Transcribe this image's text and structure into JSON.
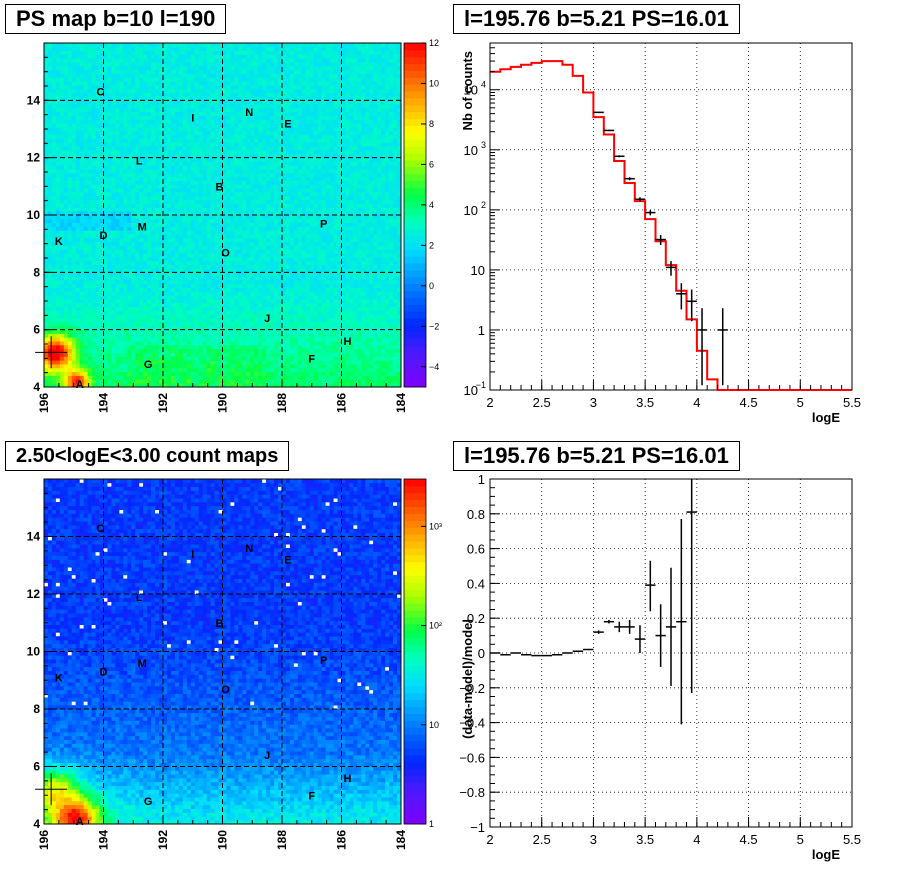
{
  "panels": {
    "top_left_title": "PS map b=10 l=190",
    "top_right_title": "l=195.76 b=5.21 PS=16.01",
    "bottom_left_title": "2.50<logE<3.00 count maps",
    "bottom_right_title": "l=195.76 b=5.21 PS=16.01"
  },
  "chart_data": [
    {
      "type": "heatmap",
      "title": "PS map b=10 l=190",
      "xlim": [
        196,
        184
      ],
      "ylim": [
        4,
        16
      ],
      "xticks": [
        "196",
        "194",
        "192",
        "190",
        "188",
        "186",
        "184"
      ],
      "yticks": [
        "4",
        "6",
        "8",
        "10",
        "12",
        "14"
      ],
      "colorbar": {
        "min": -5,
        "max": 12,
        "ticks": [
          "−4",
          "−2",
          "0",
          "2",
          "4",
          "6",
          "8",
          "10",
          "12"
        ]
      },
      "grid": true,
      "source_labels": [
        {
          "label": "A",
          "l": 194.8,
          "b": 4.1
        },
        {
          "label": "C",
          "l": 194.1,
          "b": 14.3
        },
        {
          "label": "I",
          "l": 191.0,
          "b": 13.4
        },
        {
          "label": "N",
          "l": 189.1,
          "b": 13.6
        },
        {
          "label": "E",
          "l": 187.8,
          "b": 13.2
        },
        {
          "label": "L",
          "l": 192.8,
          "b": 11.9
        },
        {
          "label": "B",
          "l": 190.1,
          "b": 11.0
        },
        {
          "label": "P",
          "l": 186.6,
          "b": 9.7
        },
        {
          "label": "M",
          "l": 192.7,
          "b": 9.6
        },
        {
          "label": "D",
          "l": 194.0,
          "b": 9.3
        },
        {
          "label": "K",
          "l": 195.5,
          "b": 9.1
        },
        {
          "label": "O",
          "l": 189.9,
          "b": 8.7
        },
        {
          "label": "J",
          "l": 188.5,
          "b": 6.4
        },
        {
          "label": "H",
          "l": 185.8,
          "b": 5.6
        },
        {
          "label": "F",
          "l": 187.0,
          "b": 5.0
        },
        {
          "label": "G",
          "l": 192.5,
          "b": 4.8
        }
      ],
      "marker": {
        "l": 195.76,
        "b": 5.21
      }
    },
    {
      "type": "line",
      "title": "l=195.76 b=5.21 PS=16.01",
      "xlabel": "logE",
      "ylabel": "Nb of counts",
      "xlim": [
        2,
        5.5
      ],
      "ylim": [
        0.1,
        60000
      ],
      "yscale": "log",
      "xticks": [
        "2",
        "2.5",
        "3",
        "3.5",
        "4",
        "4.5",
        "5",
        "5.5"
      ],
      "yticks": [
        {
          "v": 0.1,
          "base": "10",
          "exp": "−1"
        },
        {
          "v": 1,
          "base": "1",
          "exp": ""
        },
        {
          "v": 10,
          "base": "10",
          "exp": ""
        },
        {
          "v": 100,
          "base": "10",
          "exp": "2"
        },
        {
          "v": 1000,
          "base": "10",
          "exp": "3"
        },
        {
          "v": 10000,
          "base": "10",
          "exp": "4"
        }
      ],
      "grid": true,
      "bin_width": 0.1,
      "series": [
        {
          "color": "#ff0000",
          "kind": "model-histogram",
          "edges": [
            2.0,
            2.1,
            2.2,
            2.3,
            2.4,
            2.5,
            2.6,
            2.7,
            2.8,
            2.9,
            3.0,
            3.1,
            3.2,
            3.3,
            3.4,
            3.5,
            3.6,
            3.7,
            3.8,
            3.9,
            4.0,
            4.1,
            4.2,
            4.3,
            4.4,
            4.5,
            4.6,
            4.7,
            4.8,
            4.9,
            5.0,
            5.1,
            5.2,
            5.3,
            5.4,
            5.5
          ],
          "values": [
            20000,
            22000,
            24000,
            26000,
            28000,
            30000,
            30000,
            26000,
            17000,
            9000,
            3500,
            1800,
            650,
            280,
            140,
            70,
            30,
            12,
            4.5,
            1.5,
            0.45,
            0.15,
            0.1,
            0.1,
            0.1,
            0.1,
            0.1,
            0.1,
            0.1,
            0.1,
            0.1,
            0.1,
            0.1,
            0.1,
            0.1
          ]
        },
        {
          "color": "#000000",
          "kind": "data-points",
          "points": [
            {
              "x": 3.05,
              "y": 4200,
              "lo": 4100,
              "hi": 4300
            },
            {
              "x": 3.15,
              "y": 2100,
              "lo": 2050,
              "hi": 2150
            },
            {
              "x": 3.25,
              "y": 780,
              "lo": 750,
              "hi": 810
            },
            {
              "x": 3.35,
              "y": 330,
              "lo": 310,
              "hi": 350
            },
            {
              "x": 3.45,
              "y": 150,
              "lo": 138,
              "hi": 162
            },
            {
              "x": 3.55,
              "y": 90,
              "lo": 81,
              "hi": 99
            },
            {
              "x": 3.65,
              "y": 32,
              "lo": 26,
              "hi": 38
            },
            {
              "x": 3.75,
              "y": 11,
              "lo": 8,
              "hi": 14
            },
            {
              "x": 3.85,
              "y": 4,
              "lo": 2.2,
              "hi": 6
            },
            {
              "x": 3.95,
              "y": 3,
              "lo": 1.4,
              "hi": 4.7
            },
            {
              "x": 4.05,
              "y": 1,
              "lo": 0.12,
              "hi": 2.3
            },
            {
              "x": 4.25,
              "y": 1,
              "lo": 0.12,
              "hi": 2.3
            }
          ]
        }
      ]
    },
    {
      "type": "heatmap",
      "title": "2.50<logE<3.00 count maps",
      "xlim": [
        196,
        184
      ],
      "ylim": [
        4,
        16
      ],
      "xticks": [
        "196",
        "194",
        "192",
        "190",
        "188",
        "186",
        "184"
      ],
      "yticks": [
        "4",
        "6",
        "8",
        "10",
        "12",
        "14"
      ],
      "colorbar": {
        "scale": "log",
        "min": 1,
        "max": 3000,
        "ticks": [
          "1",
          "10",
          "10²",
          "10³"
        ]
      },
      "grid": true,
      "source_labels": [
        {
          "label": "A",
          "l": 194.8,
          "b": 4.1
        },
        {
          "label": "C",
          "l": 194.1,
          "b": 14.3
        },
        {
          "label": "I",
          "l": 191.0,
          "b": 13.4
        },
        {
          "label": "N",
          "l": 189.1,
          "b": 13.6
        },
        {
          "label": "E",
          "l": 187.8,
          "b": 13.2
        },
        {
          "label": "L",
          "l": 192.8,
          "b": 11.9
        },
        {
          "label": "B",
          "l": 190.1,
          "b": 11.0
        },
        {
          "label": "P",
          "l": 186.6,
          "b": 9.7
        },
        {
          "label": "M",
          "l": 192.7,
          "b": 9.6
        },
        {
          "label": "D",
          "l": 194.0,
          "b": 9.3
        },
        {
          "label": "K",
          "l": 195.5,
          "b": 9.1
        },
        {
          "label": "O",
          "l": 189.9,
          "b": 8.7
        },
        {
          "label": "J",
          "l": 188.5,
          "b": 6.4
        },
        {
          "label": "H",
          "l": 185.8,
          "b": 5.6
        },
        {
          "label": "F",
          "l": 187.0,
          "b": 5.0
        },
        {
          "label": "G",
          "l": 192.5,
          "b": 4.8
        }
      ],
      "marker": {
        "l": 195.76,
        "b": 5.21
      }
    },
    {
      "type": "scatter",
      "title": "l=195.76 b=5.21 PS=16.01",
      "xlabel": "logE",
      "ylabel": "(data-model)/model",
      "xlim": [
        2,
        5.5
      ],
      "ylim": [
        -1,
        1
      ],
      "xticks": [
        "2",
        "2.5",
        "3",
        "3.5",
        "4",
        "4.5",
        "5",
        "5.5"
      ],
      "yticks": [
        "−1",
        "−0.8",
        "−0.6",
        "−0.4",
        "−0.2",
        "0",
        "0.2",
        "0.4",
        "0.6",
        "0.8",
        "1"
      ],
      "grid": true,
      "points": [
        {
          "x": 2.05,
          "y": 0.0,
          "lo": 0.0,
          "hi": 0.0
        },
        {
          "x": 2.15,
          "y": -0.01,
          "lo": -0.01,
          "hi": -0.01
        },
        {
          "x": 2.25,
          "y": 0.0,
          "lo": 0.0,
          "hi": 0.0
        },
        {
          "x": 2.35,
          "y": -0.01,
          "lo": -0.01,
          "hi": -0.01
        },
        {
          "x": 2.45,
          "y": -0.015,
          "lo": -0.015,
          "hi": -0.015
        },
        {
          "x": 2.55,
          "y": -0.015,
          "lo": -0.015,
          "hi": -0.015
        },
        {
          "x": 2.65,
          "y": -0.01,
          "lo": -0.01,
          "hi": -0.01
        },
        {
          "x": 2.75,
          "y": 0.0,
          "lo": 0.0,
          "hi": 0.0
        },
        {
          "x": 2.85,
          "y": 0.01,
          "lo": 0.01,
          "hi": 0.01
        },
        {
          "x": 2.95,
          "y": 0.02,
          "lo": 0.02,
          "hi": 0.02
        },
        {
          "x": 3.05,
          "y": 0.12,
          "lo": 0.11,
          "hi": 0.13
        },
        {
          "x": 3.15,
          "y": 0.18,
          "lo": 0.17,
          "hi": 0.19
        },
        {
          "x": 3.25,
          "y": 0.15,
          "lo": 0.12,
          "hi": 0.18
        },
        {
          "x": 3.35,
          "y": 0.15,
          "lo": 0.11,
          "hi": 0.19
        },
        {
          "x": 3.45,
          "y": 0.08,
          "lo": 0.0,
          "hi": 0.16
        },
        {
          "x": 3.55,
          "y": 0.39,
          "lo": 0.24,
          "hi": 0.53
        },
        {
          "x": 3.65,
          "y": 0.1,
          "lo": -0.08,
          "hi": 0.28
        },
        {
          "x": 3.75,
          "y": 0.15,
          "lo": -0.19,
          "hi": 0.49
        },
        {
          "x": 3.85,
          "y": 0.18,
          "lo": -0.41,
          "hi": 0.77
        },
        {
          "x": 3.95,
          "y": 0.81,
          "lo": -0.23,
          "hi": 1.0
        }
      ]
    }
  ]
}
